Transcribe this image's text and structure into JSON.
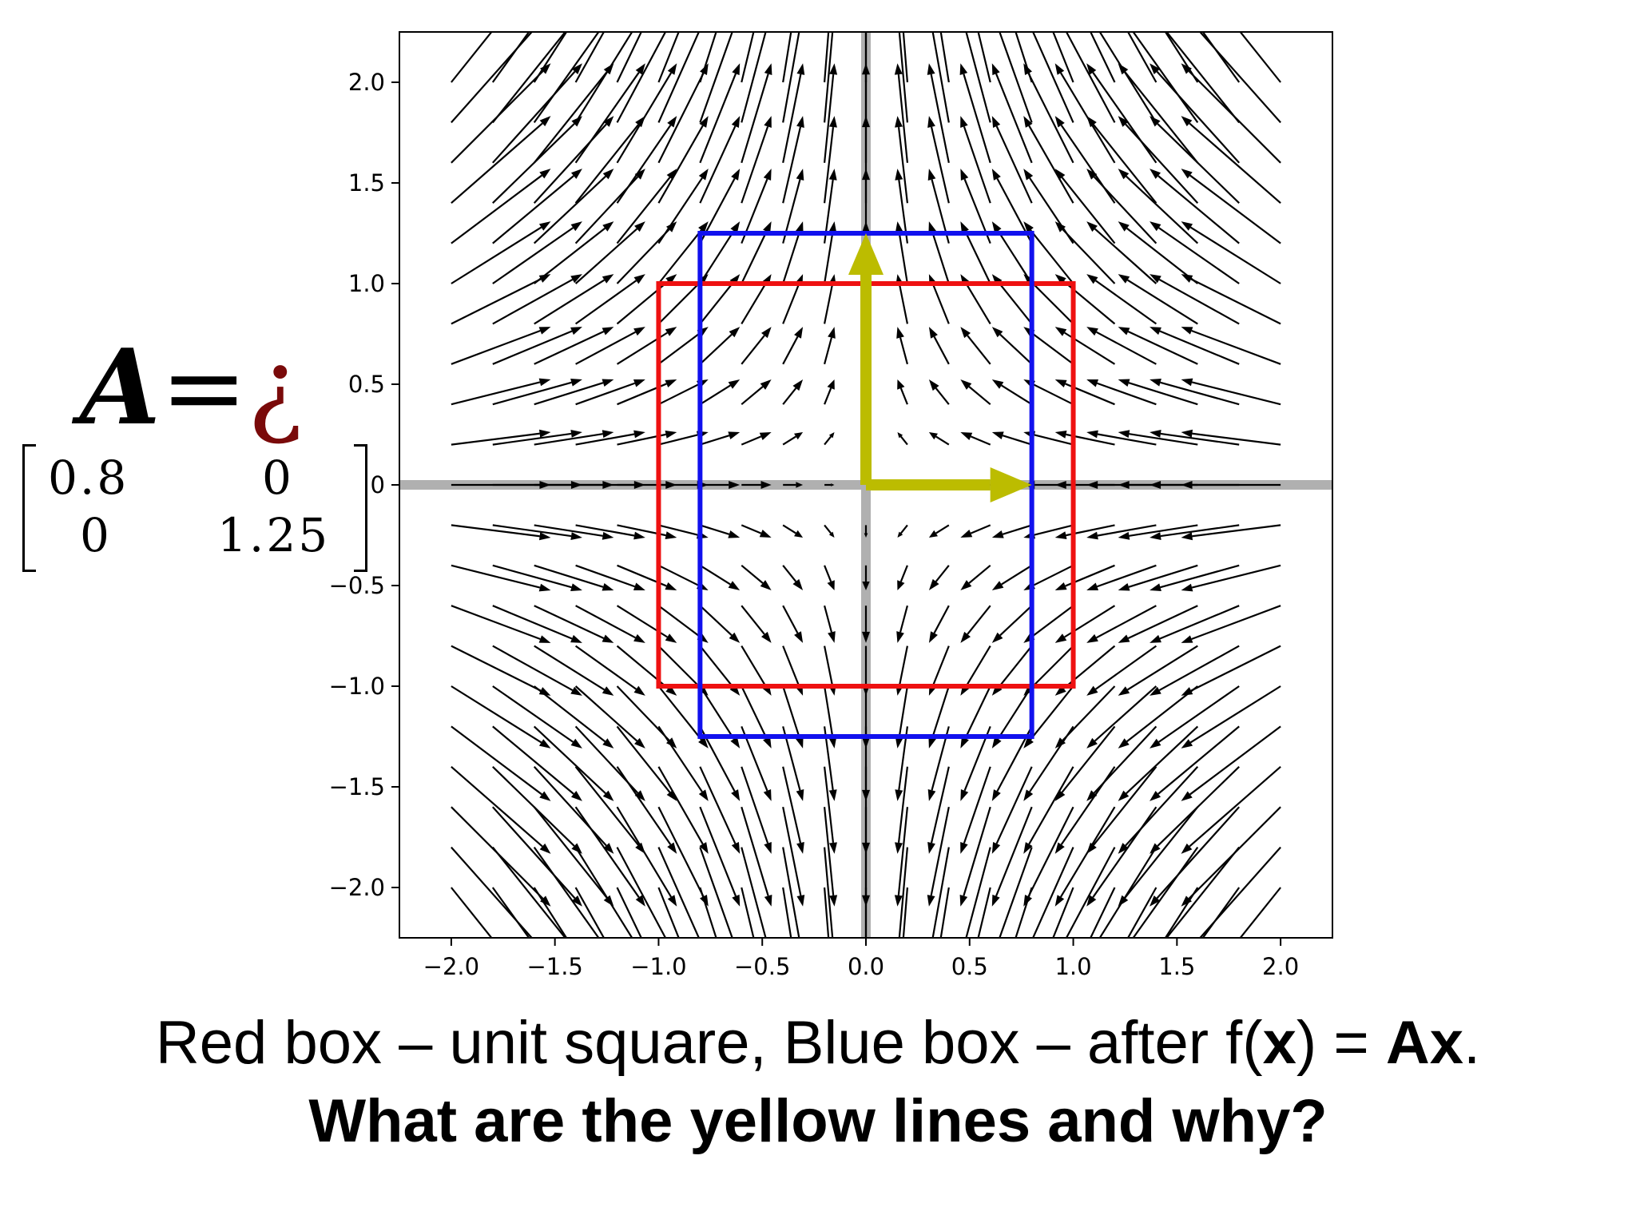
{
  "chart_data": {
    "type": "quiver",
    "title": "",
    "xlabel": "",
    "ylabel": "",
    "xlim": [
      -2.25,
      2.25
    ],
    "ylim": [
      -2.25,
      2.25
    ],
    "x_ticks": [
      -2.0,
      -1.5,
      -1.0,
      -0.5,
      0.0,
      0.5,
      1.0,
      1.5,
      2.0
    ],
    "y_ticks": [
      -2.0,
      -1.5,
      -1.0,
      -0.5,
      0.0,
      0.5,
      1.0,
      1.5,
      2.0
    ],
    "x_tick_labels": [
      "−2.0",
      "−1.5",
      "−1.0",
      "−0.5",
      "0.0",
      "0.5",
      "1.0",
      "1.5",
      "2.0"
    ],
    "y_tick_labels": [
      "−2.0",
      "−1.5",
      "−1.0",
      "−0.5",
      "0",
      "0.5",
      "1.0",
      "1.5",
      "2.0"
    ],
    "vector_field": {
      "grid_min": -2.0,
      "grid_max": 2.0,
      "grid_count": 21,
      "field": "A·v − v",
      "arrow_color": "#000000"
    },
    "matrix": [
      [
        0.8,
        0
      ],
      [
        0,
        1.25
      ]
    ],
    "shapes": [
      {
        "name": "unit square",
        "color": "#ee1111",
        "x_range": [
          -1.0,
          1.0
        ],
        "y_range": [
          -1.0,
          1.0
        ]
      },
      {
        "name": "after f(x) = Ax",
        "color": "#1111ee",
        "x_range": [
          -0.8,
          0.8
        ],
        "y_range": [
          -1.25,
          1.25
        ]
      }
    ],
    "eigenvectors": {
      "color": "#bcbc00",
      "vectors": [
        {
          "from": [
            0,
            0
          ],
          "to": [
            0.8,
            0
          ]
        },
        {
          "from": [
            0,
            0
          ],
          "to": [
            0,
            1.25
          ]
        }
      ]
    },
    "axis_line_color": "#b0b0b0"
  },
  "matrix_label": {
    "symbol": "A",
    "equals": "=",
    "glyph": "¿",
    "row1": {
      "a": "0.8",
      "b": "0"
    },
    "row2": {
      "a": "0",
      "b": "1.25"
    }
  },
  "caption": {
    "line1_part1": "Red box – unit square, Blue box – after f(",
    "line1_bold_x": "x",
    "line1_part2": ") = ",
    "line1_bold_ax": "Ax",
    "line1_part3": ".",
    "line2": "What are the yellow lines and why?"
  }
}
